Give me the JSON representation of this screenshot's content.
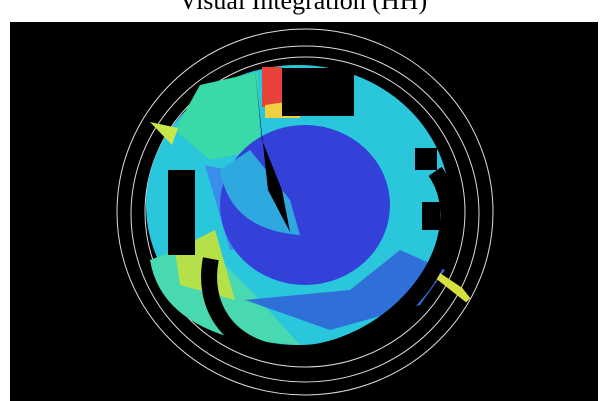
{
  "title": "Visual Integration (HH)"
}
